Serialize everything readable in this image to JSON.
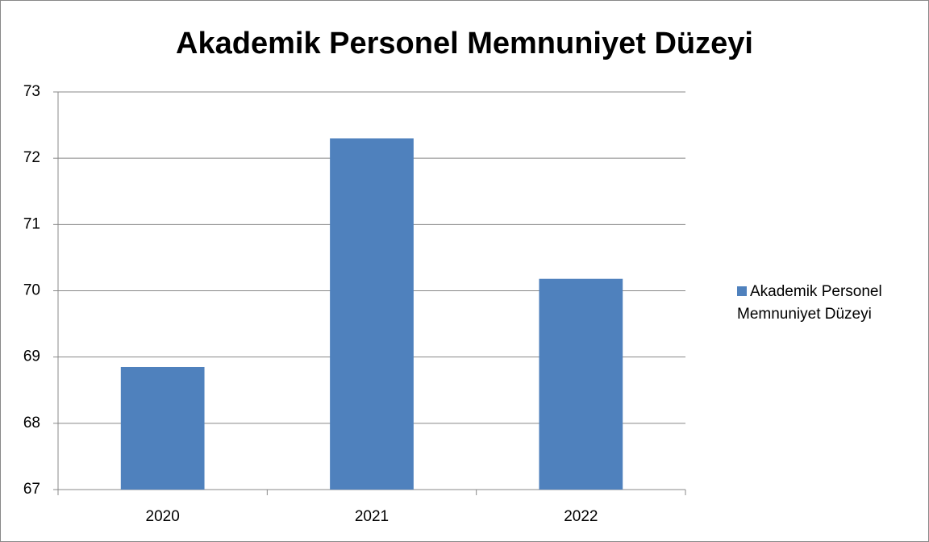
{
  "chart_data": {
    "type": "bar",
    "title": "Akademik Personel Memnuniyet Düzeyi",
    "categories": [
      "2020",
      "2021",
      "2022"
    ],
    "series": [
      {
        "name": "Akademik Personel Memnuniyet Düzeyi",
        "color": "#4f81bd",
        "values": [
          68.85,
          72.3,
          70.18
        ]
      }
    ],
    "ylim": [
      67,
      73
    ],
    "yticks": [
      67,
      68,
      69,
      70,
      71,
      72,
      73
    ],
    "grid": true,
    "legend": "right"
  }
}
